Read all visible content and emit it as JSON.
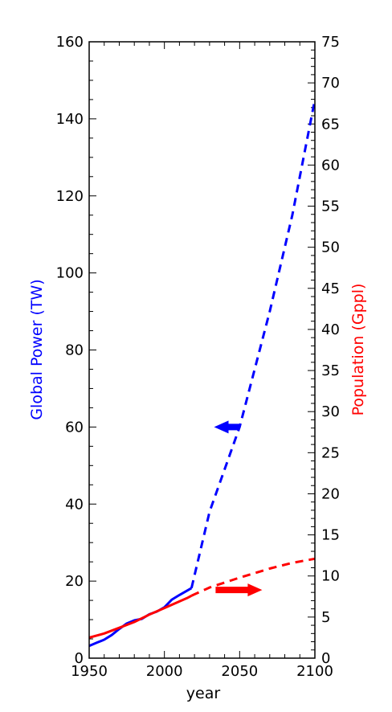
{
  "chart_data": {
    "type": "line",
    "xlabel": "year",
    "ylabel_left": "Global Power (TW)",
    "ylabel_right": "Population (Gppl)",
    "xlim": [
      1950,
      2100
    ],
    "ylim_left": [
      0,
      160
    ],
    "ylim_right": [
      0,
      75
    ],
    "x_ticks": [
      "1950",
      "2000",
      "2050",
      "2100"
    ],
    "y_left_ticks": [
      "0",
      "20",
      "40",
      "60",
      "80",
      "100",
      "120",
      "140",
      "160"
    ],
    "y_right_ticks": [
      "0",
      "5",
      "10",
      "15",
      "20",
      "25",
      "30",
      "35",
      "40",
      "45",
      "50",
      "55",
      "60",
      "65",
      "70",
      "75"
    ],
    "colors": {
      "power": "#0000ff",
      "population": "#ff0000",
      "axes": "#000000"
    },
    "grid": false,
    "series": [
      {
        "axis": "left",
        "color": "#0000ff",
        "style": "solid",
        "points": [
          [
            1950,
            3.2
          ],
          [
            1955,
            4.0
          ],
          [
            1960,
            4.8
          ],
          [
            1965,
            6.0
          ],
          [
            1970,
            7.6
          ],
          [
            1975,
            9.0
          ],
          [
            1980,
            9.8
          ],
          [
            1985,
            10.2
          ],
          [
            1990,
            11.4
          ],
          [
            1995,
            12.1
          ],
          [
            2000,
            13.2
          ],
          [
            2005,
            15.2
          ],
          [
            2010,
            16.4
          ],
          [
            2015,
            17.5
          ],
          [
            2018,
            18.2
          ]
        ]
      },
      {
        "axis": "left",
        "color": "#0000ff",
        "style": "dashed",
        "points": [
          [
            2018,
            18.2
          ],
          [
            2030,
            38
          ],
          [
            2050,
            60
          ],
          [
            2070,
            90
          ],
          [
            2085,
            115
          ],
          [
            2100,
            145
          ]
        ]
      },
      {
        "axis": "right",
        "color": "#ff0000",
        "style": "solid",
        "points": [
          [
            1950,
            2.5
          ],
          [
            1960,
            3.0
          ],
          [
            1970,
            3.7
          ],
          [
            1980,
            4.4
          ],
          [
            1990,
            5.3
          ],
          [
            2000,
            6.1
          ],
          [
            2010,
            6.9
          ],
          [
            2015,
            7.3
          ],
          [
            2018,
            7.6
          ]
        ]
      },
      {
        "axis": "right",
        "color": "#ff0000",
        "style": "dashed",
        "points": [
          [
            2018,
            7.6
          ],
          [
            2030,
            8.6
          ],
          [
            2050,
            9.8
          ],
          [
            2070,
            10.9
          ],
          [
            2085,
            11.6
          ],
          [
            2100,
            12.1
          ]
        ]
      }
    ],
    "annotations": [
      {
        "kind": "arrow",
        "direction": "left",
        "color": "#0000ff",
        "axis": "left",
        "from": [
          2050,
          60
        ],
        "to": [
          2033,
          60
        ]
      },
      {
        "kind": "arrow",
        "direction": "right",
        "color": "#ff0000",
        "axis": "right",
        "from": [
          2034,
          8.3
        ],
        "to": [
          2065,
          8.3
        ]
      }
    ]
  }
}
